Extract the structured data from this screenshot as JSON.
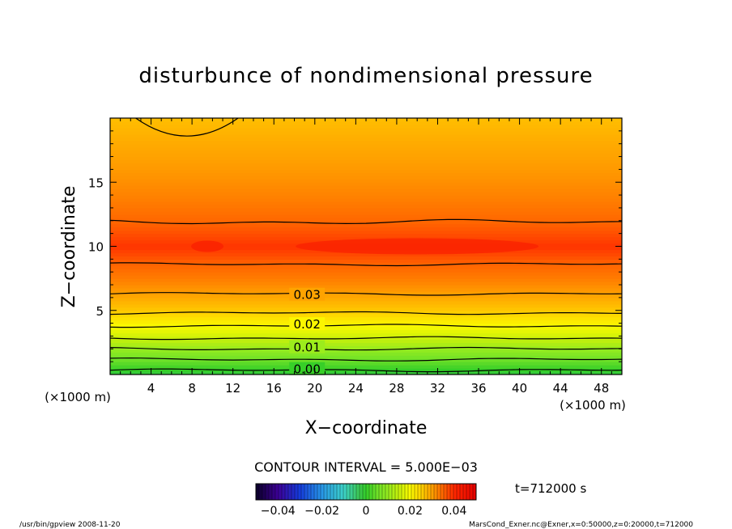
{
  "chart_data": {
    "type": "heatmap",
    "title": "disturbunce of nondimensional pressure",
    "xlabel": "X−coordinate",
    "ylabel": "Z−coordinate",
    "x_units": "(×1000 m)",
    "y_units": "(×1000 m)",
    "xlim": [
      0,
      50
    ],
    "ylim": [
      0,
      20
    ],
    "x_ticks": [
      4,
      8,
      12,
      16,
      20,
      24,
      28,
      32,
      36,
      40,
      44,
      48
    ],
    "y_ticks": [
      5,
      10,
      15
    ],
    "contour_interval_text": "CONTOUR INTERVAL = 5.000E−03",
    "time_label": "t=712000 s",
    "colorbar_ticks": [
      "−0.04",
      "−0.02",
      "0",
      "0.02",
      "0.04"
    ],
    "colorbar_range": [
      -0.05,
      0.05
    ],
    "contour_labels": [
      {
        "text": "0.03",
        "x": 17.5,
        "z": 6.2
      },
      {
        "text": "0.02",
        "x": 17.5,
        "z": 3.9
      },
      {
        "text": "0.01",
        "x": 17.5,
        "z": 2.1
      },
      {
        "text": "0.00",
        "x": 17.5,
        "z": 0.4
      }
    ],
    "vertical_profile": [
      {
        "z": 0.0,
        "value": -0.002
      },
      {
        "z": 1.0,
        "value": 0.004
      },
      {
        "z": 2.0,
        "value": 0.01
      },
      {
        "z": 3.0,
        "value": 0.016
      },
      {
        "z": 4.0,
        "value": 0.021
      },
      {
        "z": 5.0,
        "value": 0.026
      },
      {
        "z": 6.3,
        "value": 0.03
      },
      {
        "z": 7.5,
        "value": 0.033
      },
      {
        "z": 8.6,
        "value": 0.035
      },
      {
        "z": 10.0,
        "value": 0.039
      },
      {
        "z": 11.8,
        "value": 0.035
      },
      {
        "z": 13.5,
        "value": 0.033
      },
      {
        "z": 15.5,
        "value": 0.031
      },
      {
        "z": 18.0,
        "value": 0.029
      },
      {
        "z": 20.0,
        "value": 0.027
      }
    ],
    "contour_levels": [
      0.0,
      0.005,
      0.01,
      0.015,
      0.02,
      0.025,
      0.03,
      0.035,
      0.04
    ]
  },
  "footer": {
    "left": "/usr/bin/gpview   2008-11-20",
    "right": "MarsCond_Exner.nc@Exner,x=0:50000,z=0:20000,t=712000"
  }
}
